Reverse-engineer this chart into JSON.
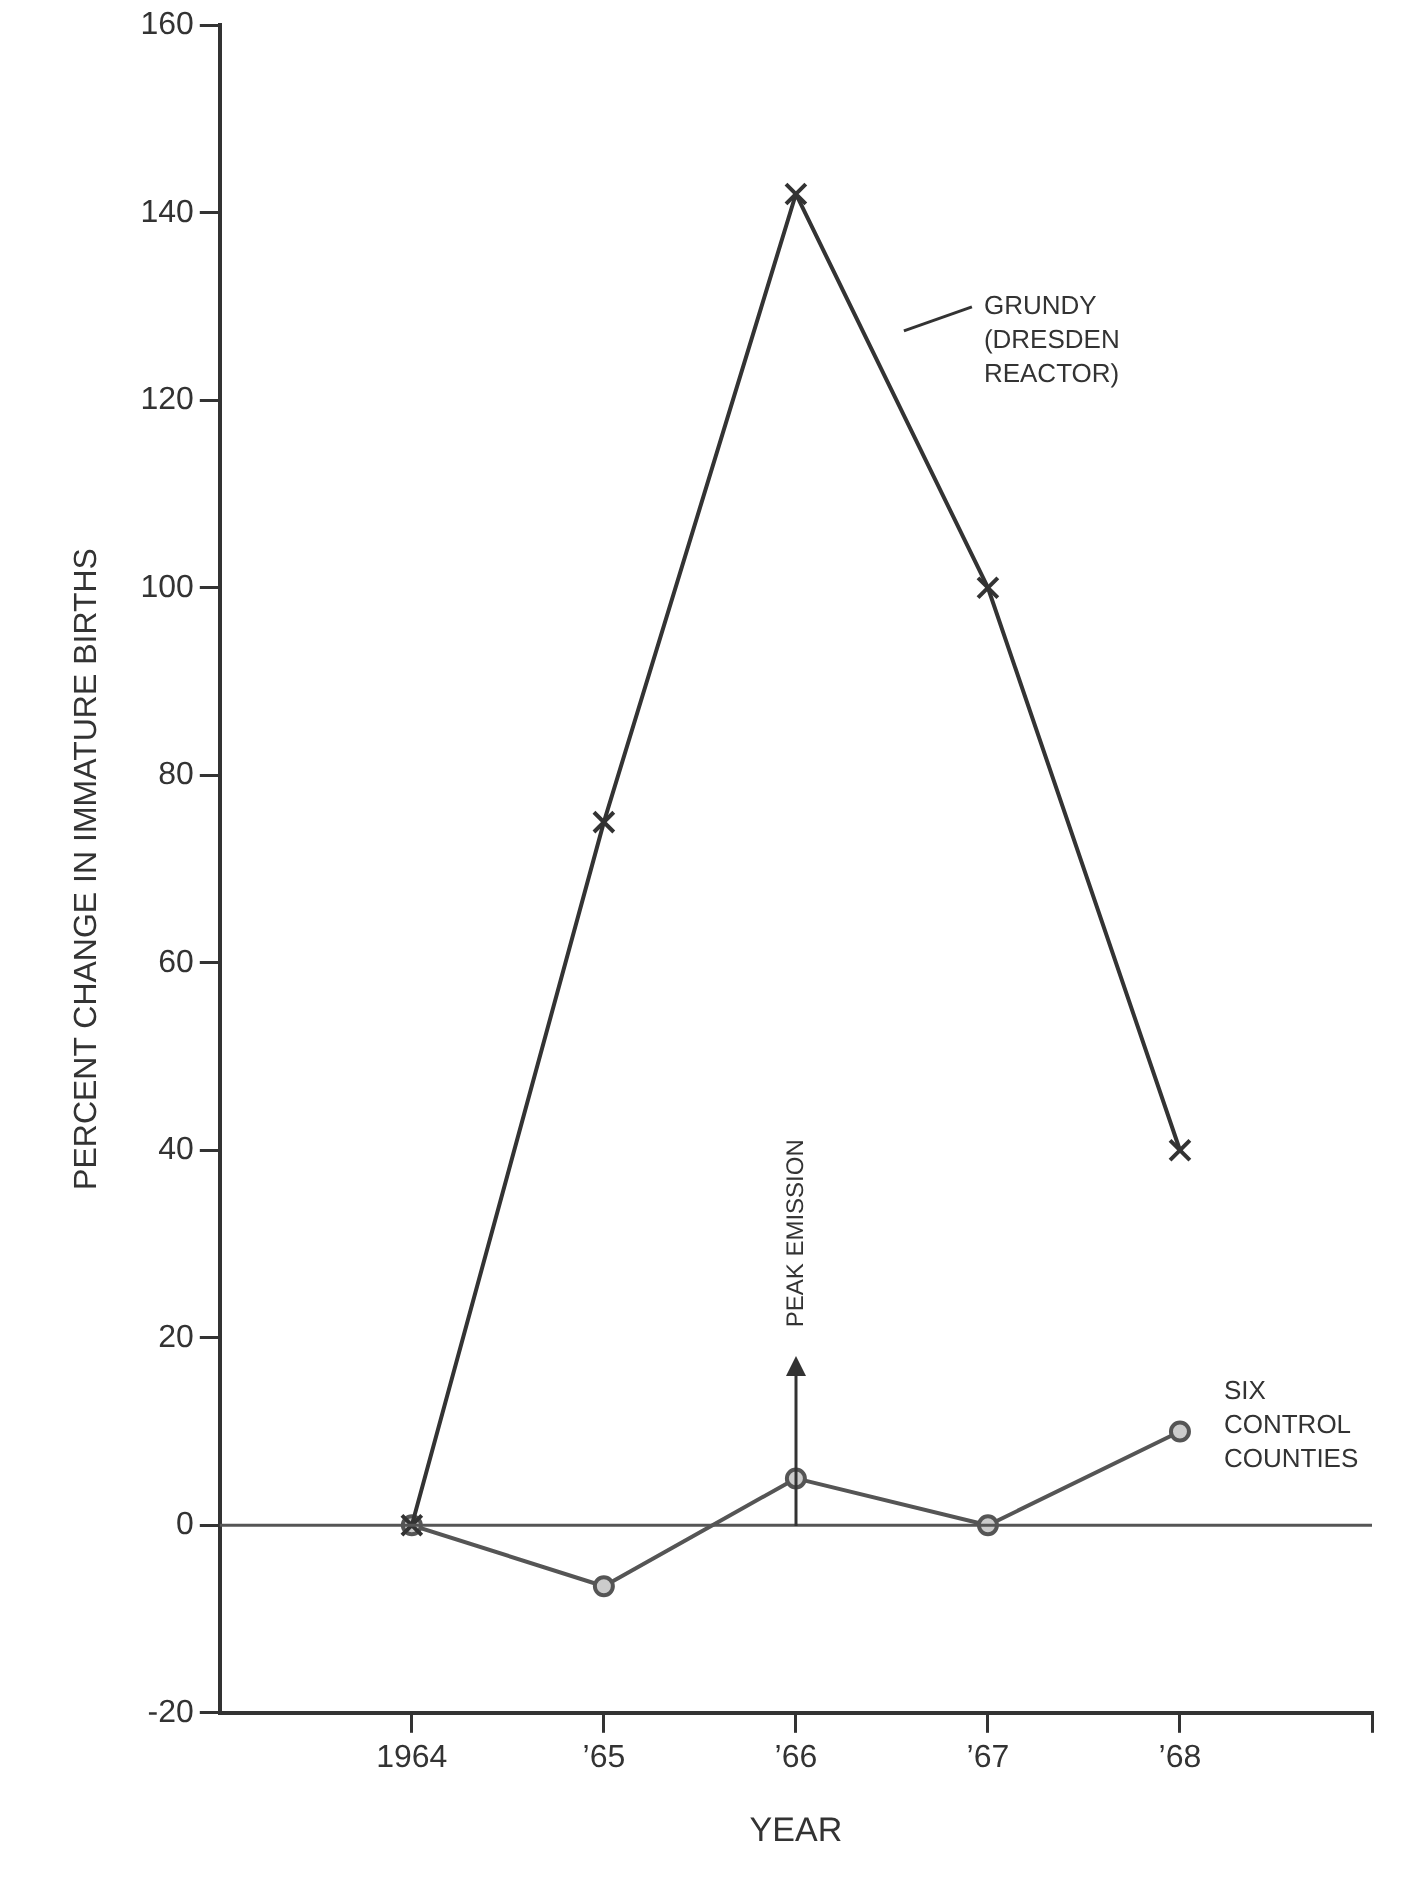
{
  "chart_data": {
    "type": "line",
    "xlabel": "YEAR",
    "ylabel": "PERCENT CHANGE IN IMMATURE BIRTHS",
    "x": [
      1964,
      1965,
      1966,
      1967,
      1968
    ],
    "series": [
      {
        "name": "GRUNDY (DRESDEN REACTOR)",
        "color": "#333333",
        "marker": "cross",
        "values": [
          0,
          75,
          142,
          100,
          40
        ]
      },
      {
        "name": "SIX CONTROL COUNTIES",
        "color": "#555555",
        "marker": "circle",
        "values": [
          0,
          -6.5,
          5,
          0,
          10
        ]
      }
    ],
    "xlim": [
      1963,
      1969
    ],
    "xticks": [
      1964,
      {
        "value": 1965,
        "label": "’65"
      },
      {
        "value": 1966,
        "label": "’66"
      },
      {
        "value": 1967,
        "label": "’67"
      },
      {
        "value": 1968,
        "label": "’68"
      },
      {
        "value": 1969,
        "label": null
      }
    ],
    "ylim": [
      -20,
      160
    ],
    "yticks": [
      -20,
      0,
      20,
      40,
      60,
      80,
      100,
      120,
      140,
      160
    ],
    "ref_lines": [
      {
        "axis": "y",
        "value": 0,
        "color": "#555555"
      }
    ],
    "annotations": [
      "PEAK EMISSION"
    ],
    "grid": false,
    "line_style": "solid"
  }
}
